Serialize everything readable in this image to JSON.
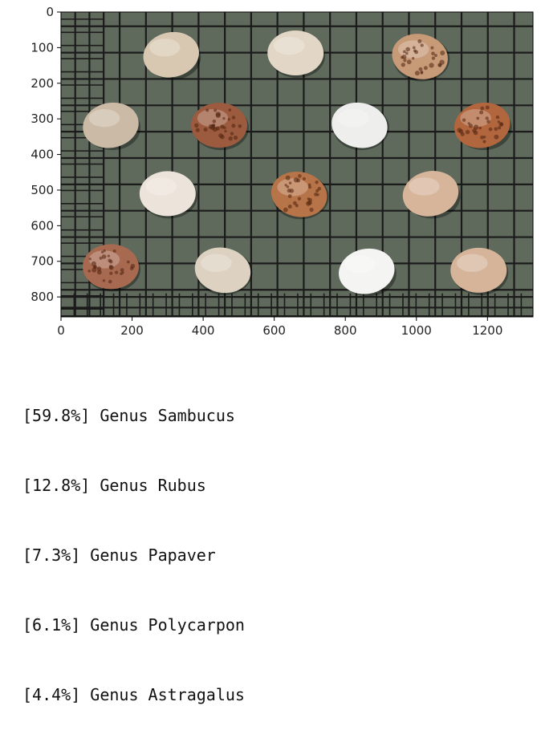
{
  "image_plot": {
    "xticks": [
      "0",
      "200",
      "400",
      "600",
      "800",
      "1000",
      "1200"
    ],
    "yticks": [
      "0",
      "100",
      "200",
      "300",
      "400",
      "500",
      "600",
      "700",
      "800"
    ],
    "xlim": [
      0,
      1328
    ],
    "ylim": [
      0,
      856
    ],
    "colors": {
      "background": "#5f6a5c",
      "grid": "#1b1b1b",
      "axis": "#000000"
    },
    "seeds": [
      {
        "x": 310,
        "y": 120,
        "color": "#d8c8b2",
        "speckled": false
      },
      {
        "x": 660,
        "y": 115,
        "color": "#e2d6c6",
        "speckled": false
      },
      {
        "x": 1010,
        "y": 125,
        "color": "#c79a78",
        "speckled": true
      },
      {
        "x": 140,
        "y": 318,
        "color": "#cbbba6",
        "speckled": false
      },
      {
        "x": 445,
        "y": 318,
        "color": "#9c5b3e",
        "speckled": true
      },
      {
        "x": 840,
        "y": 318,
        "color": "#eeeeec",
        "speckled": false
      },
      {
        "x": 1185,
        "y": 318,
        "color": "#b1663e",
        "speckled": true
      },
      {
        "x": 300,
        "y": 510,
        "color": "#ece3da",
        "speckled": false
      },
      {
        "x": 670,
        "y": 512,
        "color": "#b77448",
        "speckled": true
      },
      {
        "x": 1040,
        "y": 510,
        "color": "#d7b59a",
        "speckled": false
      },
      {
        "x": 140,
        "y": 715,
        "color": "#a7694f",
        "speckled": true
      },
      {
        "x": 455,
        "y": 725,
        "color": "#ddd1c1",
        "speckled": false
      },
      {
        "x": 860,
        "y": 728,
        "color": "#f4f4f3",
        "speckled": false
      },
      {
        "x": 1175,
        "y": 725,
        "color": "#d6b49a",
        "speckled": false
      }
    ]
  },
  "predictions": [
    "[59.8%] Genus Sambucus",
    "[12.8%] Genus Rubus",
    "[7.3%] Genus Papaver",
    "[6.1%] Genus Polycarpon",
    "[4.4%] Genus Astragalus"
  ]
}
